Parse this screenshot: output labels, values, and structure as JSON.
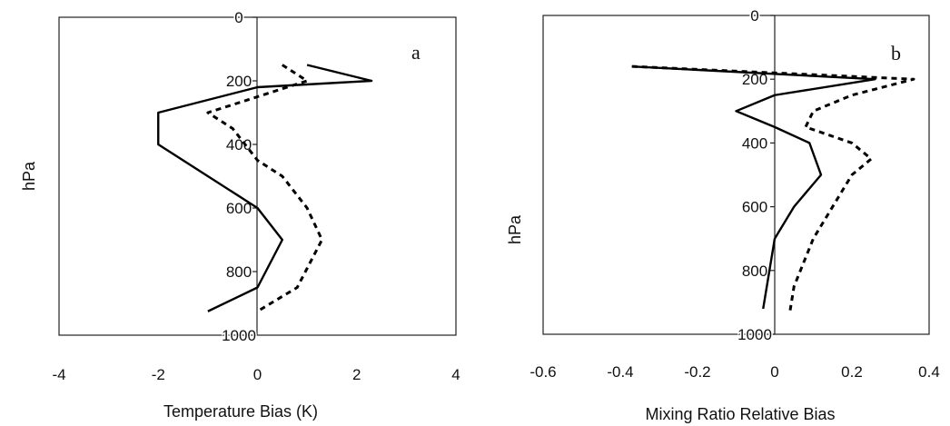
{
  "chart_data": [
    {
      "type": "line",
      "panel_label": "a",
      "xlabel": "Temperature Bias (K)",
      "ylabel": "hPa",
      "xlim": [
        -4,
        4
      ],
      "ylim": [
        0,
        1000
      ],
      "y_inverted": true,
      "grid": false,
      "x_ticks": [
        "-4",
        "-2",
        "0",
        "2",
        "4"
      ],
      "y_ticks": [
        "0",
        "200",
        "400",
        "600",
        "800",
        "1000"
      ],
      "series": [
        {
          "style": "solid",
          "x": [
            1.0,
            2.3,
            0.0,
            -2.0,
            -2.0,
            -1.0,
            0.0,
            0.5,
            0.0,
            -1.0
          ],
          "y": [
            150,
            200,
            220,
            300,
            400,
            500,
            600,
            700,
            850,
            925
          ]
        },
        {
          "style": "dashed",
          "x": [
            0.5,
            1.0,
            0.0,
            -1.0,
            -0.5,
            0.0,
            0.5,
            1.0,
            1.3,
            0.8,
            0.0
          ],
          "y": [
            150,
            200,
            250,
            300,
            350,
            450,
            500,
            600,
            700,
            850,
            925
          ]
        }
      ]
    },
    {
      "type": "line",
      "panel_label": "b",
      "xlabel": "Mixing Ratio Relative Bias",
      "ylabel": "hPa",
      "xlim": [
        -0.6,
        0.4
      ],
      "ylim": [
        0,
        1000
      ],
      "y_inverted": true,
      "grid": false,
      "x_ticks": [
        "-0.6",
        "-0.4",
        "-0.2",
        "0",
        "0.2",
        "0.4"
      ],
      "y_ticks": [
        "0",
        "200",
        "400",
        "600",
        "800",
        "1000"
      ],
      "series": [
        {
          "style": "solid",
          "x": [
            -0.37,
            0.26,
            0.0,
            -0.1,
            0.0,
            0.09,
            0.12,
            0.05,
            0.0,
            -0.03
          ],
          "y": [
            160,
            200,
            250,
            300,
            350,
            400,
            500,
            600,
            700,
            920
          ]
        },
        {
          "style": "dashed",
          "x": [
            -0.37,
            0.36,
            0.2,
            0.1,
            0.08,
            0.2,
            0.25,
            0.2,
            0.1,
            0.05,
            0.04
          ],
          "y": [
            160,
            200,
            250,
            300,
            350,
            400,
            450,
            500,
            700,
            850,
            925
          ]
        }
      ]
    }
  ]
}
